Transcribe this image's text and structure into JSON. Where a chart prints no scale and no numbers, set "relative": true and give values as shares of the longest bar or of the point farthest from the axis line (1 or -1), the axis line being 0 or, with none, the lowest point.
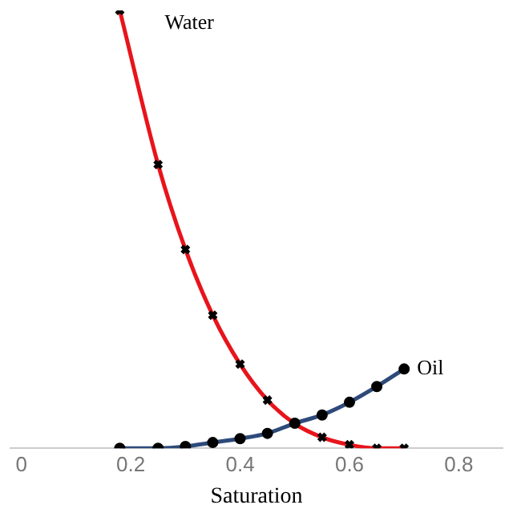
{
  "chart_data": {
    "type": "line",
    "xlabel": "Saturation",
    "relative": true,
    "xlim": [
      -0.02,
      0.88
    ],
    "xticks": [
      0,
      0.2,
      0.4,
      0.6,
      0.8
    ],
    "grid": false,
    "legend": false,
    "line_style": "solid",
    "x": [
      0.18,
      0.25,
      0.3,
      0.35,
      0.4,
      0.45,
      0.5,
      0.55,
      0.6,
      0.65,
      0.7
    ],
    "series": [
      {
        "name": "Water",
        "color": "#e8141b",
        "marker": "cross",
        "values": [
          1,
          0.648,
          0.454,
          0.304,
          0.192,
          0.11,
          0.056,
          0.025,
          0.008,
          0,
          0
        ]
      },
      {
        "name": "Oil",
        "color": "#2e4a7a",
        "marker": "circle",
        "values": [
          0,
          0,
          0.004,
          0.013,
          0.022,
          0.034,
          0.057,
          0.076,
          0.105,
          0.141,
          0.181
        ]
      }
    ]
  }
}
